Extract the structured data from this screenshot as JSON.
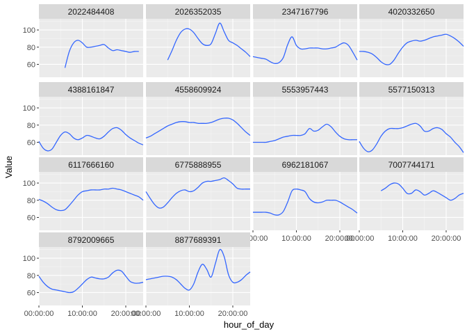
{
  "chart_data": {
    "type": "line",
    "title": "",
    "xlabel": "hour_of_day",
    "ylabel": "Value",
    "xlim": [
      0,
      24
    ],
    "ylim": [
      45,
      113
    ],
    "x_ticks": [
      {
        "value": 0,
        "label": "00:00:00"
      },
      {
        "value": 10,
        "label": "10:00:00"
      },
      {
        "value": 20,
        "label": "20:00:00"
      }
    ],
    "y_ticks": [
      60,
      80,
      100
    ],
    "grid": true,
    "facet_layout": {
      "columns": 4,
      "rows": 4
    },
    "line_color": "#3366FF",
    "panel_background": "#EBEBEB",
    "strip_background": "#D9D9D9",
    "grid_major_color": "#FFFFFF",
    "facets": [
      {
        "id": "2022484408",
        "x": [
          6,
          7,
          8,
          9,
          10,
          11,
          12,
          13,
          14,
          15,
          16,
          17,
          18,
          19,
          20,
          21,
          22,
          23
        ],
        "y": [
          56,
          75,
          85,
          88,
          85,
          80,
          80,
          81,
          82,
          83,
          79,
          76,
          77,
          76,
          75,
          74,
          75,
          75
        ]
      },
      {
        "id": "2026352035",
        "x": [
          5,
          6,
          7,
          8,
          9,
          10,
          11,
          12,
          13,
          14,
          15,
          16,
          17,
          18,
          19,
          20,
          21,
          22,
          23,
          24
        ],
        "y": [
          65,
          76,
          88,
          97,
          101,
          101,
          97,
          90,
          84,
          82,
          84,
          96,
          108,
          98,
          88,
          85,
          82,
          78,
          74,
          69
        ]
      },
      {
        "id": "2347167796",
        "x": [
          0,
          1,
          2,
          3,
          4,
          5,
          6,
          7,
          8,
          9,
          10,
          11,
          12,
          13,
          14,
          15,
          16,
          17,
          18,
          19,
          20,
          21,
          22,
          23,
          24
        ],
        "y": [
          69,
          68,
          67,
          66,
          63,
          61,
          62,
          68,
          83,
          92,
          82,
          78,
          78,
          79,
          79,
          79,
          78,
          78,
          79,
          80,
          83,
          85,
          82,
          74,
          65
        ]
      },
      {
        "id": "4020332650",
        "x": [
          0,
          1,
          2,
          3,
          4,
          5,
          6,
          7,
          8,
          9,
          10,
          11,
          12,
          13,
          14,
          15,
          16,
          17,
          18,
          19,
          20,
          21,
          22,
          23,
          24
        ],
        "y": [
          75,
          75,
          74,
          72,
          68,
          63,
          60,
          60,
          65,
          73,
          80,
          85,
          87,
          88,
          87,
          88,
          90,
          92,
          93,
          94,
          95,
          93,
          90,
          86,
          81
        ]
      },
      {
        "id": "4388161847",
        "x": [
          0,
          1,
          2,
          3,
          4,
          5,
          6,
          7,
          8,
          9,
          10,
          11,
          12,
          13,
          14,
          15,
          16,
          17,
          18,
          19,
          20,
          21,
          22,
          23,
          24
        ],
        "y": [
          61,
          53,
          50,
          52,
          60,
          68,
          72,
          70,
          65,
          63,
          65,
          68,
          67,
          65,
          64,
          67,
          72,
          76,
          77,
          74,
          69,
          65,
          62,
          59,
          57
        ]
      },
      {
        "id": "4558609924",
        "x": [
          0,
          1,
          2,
          3,
          4,
          5,
          6,
          7,
          8,
          9,
          10,
          11,
          12,
          13,
          14,
          15,
          16,
          17,
          18,
          19,
          20,
          21,
          22,
          23,
          24
        ],
        "y": [
          65,
          67,
          70,
          73,
          76,
          79,
          81,
          83,
          84,
          84,
          83,
          83,
          82,
          82,
          82,
          83,
          85,
          87,
          88,
          88,
          86,
          82,
          77,
          72,
          68
        ]
      },
      {
        "id": "5553957443",
        "x": [
          0,
          1,
          2,
          3,
          4,
          5,
          6,
          7,
          8,
          9,
          10,
          11,
          12,
          13,
          14,
          15,
          16,
          17,
          18,
          19,
          20,
          21,
          22,
          23,
          24
        ],
        "y": [
          60,
          60,
          60,
          60,
          61,
          62,
          64,
          66,
          67,
          68,
          68,
          68,
          70,
          76,
          73,
          74,
          78,
          81,
          78,
          72,
          67,
          64,
          63,
          63,
          63
        ]
      },
      {
        "id": "5577150313",
        "x": [
          0,
          1,
          2,
          3,
          4,
          5,
          6,
          7,
          8,
          9,
          10,
          11,
          12,
          13,
          14,
          15,
          16,
          17,
          18,
          19,
          20,
          21,
          22,
          23,
          24
        ],
        "y": [
          61,
          53,
          49,
          51,
          58,
          67,
          73,
          76,
          76,
          76,
          77,
          79,
          81,
          82,
          79,
          73,
          73,
          76,
          77,
          75,
          70,
          66,
          60,
          55,
          48
        ]
      },
      {
        "id": "6117666160",
        "x": [
          0,
          1,
          2,
          3,
          4,
          5,
          6,
          7,
          8,
          9,
          10,
          11,
          12,
          13,
          14,
          15,
          16,
          17,
          18,
          19,
          20,
          21,
          22,
          23,
          24
        ],
        "y": [
          81,
          79,
          76,
          72,
          69,
          68,
          69,
          74,
          80,
          86,
          90,
          91,
          92,
          92,
          92,
          93,
          93,
          94,
          93,
          92,
          90,
          88,
          86,
          84,
          80
        ]
      },
      {
        "id": "6775888955",
        "x": [
          0,
          1,
          2,
          3,
          4,
          5,
          6,
          7,
          8,
          9,
          10,
          11,
          12,
          13,
          14,
          15,
          16,
          17,
          18,
          19,
          20,
          21,
          22,
          23,
          24
        ],
        "y": [
          90,
          82,
          75,
          71,
          72,
          77,
          83,
          88,
          91,
          92,
          90,
          91,
          95,
          100,
          102,
          102,
          103,
          104,
          106,
          103,
          99,
          94,
          93,
          93,
          93
        ]
      },
      {
        "id": "6962181067",
        "x": [
          0,
          1,
          2,
          3,
          4,
          5,
          6,
          7,
          8,
          9,
          10,
          11,
          12,
          13,
          14,
          15,
          16,
          17,
          18,
          19,
          20,
          21,
          22,
          23,
          24
        ],
        "y": [
          66,
          66,
          66,
          66,
          65,
          63,
          63,
          67,
          78,
          91,
          93,
          92,
          90,
          82,
          78,
          77,
          78,
          80,
          80,
          80,
          78,
          75,
          72,
          69,
          65
        ]
      },
      {
        "id": "7007744171",
        "x": [
          5,
          6,
          7,
          8,
          9,
          10,
          11,
          12,
          13,
          14,
          15,
          16,
          17,
          18,
          19,
          20,
          21,
          22,
          23,
          24
        ],
        "y": [
          91,
          94,
          98,
          100,
          99,
          94,
          88,
          88,
          92,
          90,
          86,
          88,
          91,
          89,
          86,
          83,
          80,
          82,
          86,
          88
        ]
      },
      {
        "id": "8792009665",
        "x": [
          0,
          1,
          2,
          3,
          4,
          5,
          6,
          7,
          8,
          9,
          10,
          11,
          12,
          13,
          14,
          15,
          16,
          17,
          18,
          19,
          20,
          21,
          22,
          23,
          24
        ],
        "y": [
          79,
          72,
          67,
          64,
          63,
          62,
          61,
          60,
          61,
          65,
          70,
          75,
          78,
          77,
          76,
          76,
          78,
          83,
          86,
          85,
          79,
          73,
          71,
          71,
          72
        ]
      },
      {
        "id": "8877689391",
        "x": [
          0,
          1,
          2,
          3,
          4,
          5,
          6,
          7,
          8,
          9,
          10,
          11,
          12,
          13,
          14,
          15,
          16,
          17,
          18,
          19,
          20,
          21,
          22,
          23,
          24
        ],
        "y": [
          75,
          76,
          77,
          78,
          79,
          79,
          78,
          75,
          70,
          65,
          63,
          70,
          84,
          93,
          87,
          78,
          94,
          110,
          102,
          81,
          72,
          72,
          75,
          80,
          84
        ]
      }
    ]
  }
}
